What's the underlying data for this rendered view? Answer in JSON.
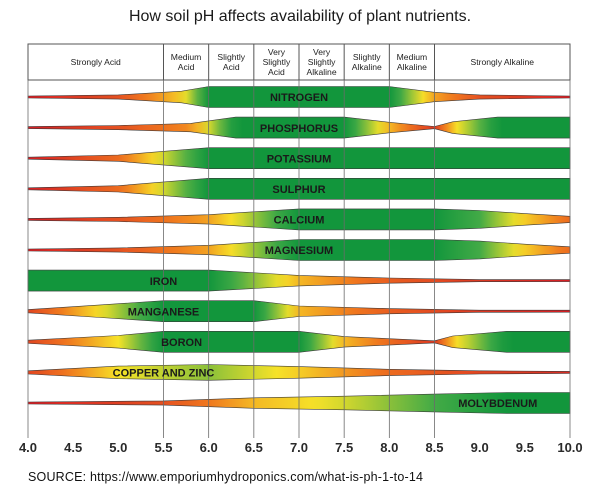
{
  "chart_data": {
    "type": "band",
    "title": "How soil pH affects availability of plant nutrients.",
    "xlabel": "",
    "ylabel": "",
    "xlim": [
      4.0,
      10.0
    ],
    "x_ticks": [
      "4.0",
      "4.5",
      "5.0",
      "5.5",
      "6.0",
      "6.5",
      "7.0",
      "7.5",
      "8.0",
      "8.5",
      "9.0",
      "9.5",
      "10.0"
    ],
    "zones": [
      {
        "label": "Strongly Acid",
        "from": 4.0,
        "to": 5.5
      },
      {
        "label": "Medium Acid",
        "from": 5.5,
        "to": 6.0
      },
      {
        "label": "Slightly Acid",
        "from": 6.0,
        "to": 6.5
      },
      {
        "label": "Very Slightly Acid",
        "from": 6.5,
        "to": 7.0
      },
      {
        "label": "Very Slightly Alkaline",
        "from": 7.0,
        "to": 7.5
      },
      {
        "label": "Slightly Alkaline",
        "from": 7.5,
        "to": 8.0
      },
      {
        "label": "Medium Alkaline",
        "from": 8.0,
        "to": 8.5
      },
      {
        "label": "Strongly Alkaline",
        "from": 8.5,
        "to": 10.0
      }
    ],
    "availability_scale": "0 = unavailable (red), 1 = fully available (green)",
    "series": [
      {
        "name": "NITROGEN",
        "label_ph": 7.0,
        "points": [
          [
            4.0,
            0.0
          ],
          [
            5.0,
            0.2
          ],
          [
            5.7,
            0.55
          ],
          [
            6.0,
            1.0
          ],
          [
            8.0,
            1.0
          ],
          [
            8.5,
            0.45
          ],
          [
            9.0,
            0.2
          ],
          [
            10.0,
            0.0
          ]
        ]
      },
      {
        "name": "PHOSPHORUS",
        "label_ph": 7.0,
        "points": [
          [
            4.0,
            0.0
          ],
          [
            5.0,
            0.2
          ],
          [
            5.8,
            0.4
          ],
          [
            6.3,
            1.0
          ],
          [
            7.5,
            1.0
          ],
          [
            8.0,
            0.5
          ],
          [
            8.5,
            0.1
          ],
          [
            8.7,
            0.55
          ],
          [
            9.2,
            1.0
          ],
          [
            10.0,
            1.0
          ]
        ]
      },
      {
        "name": "POTASSIUM",
        "label_ph": 7.0,
        "points": [
          [
            4.0,
            0.0
          ],
          [
            5.0,
            0.3
          ],
          [
            6.0,
            1.0
          ],
          [
            10.0,
            1.0
          ]
        ]
      },
      {
        "name": "SULPHUR",
        "label_ph": 7.0,
        "points": [
          [
            4.0,
            0.0
          ],
          [
            5.0,
            0.3
          ],
          [
            6.0,
            1.0
          ],
          [
            10.0,
            1.0
          ]
        ]
      },
      {
        "name": "CALCIUM",
        "label_ph": 7.0,
        "points": [
          [
            4.0,
            0.0
          ],
          [
            5.0,
            0.2
          ],
          [
            6.0,
            0.45
          ],
          [
            7.0,
            1.0
          ],
          [
            8.5,
            1.0
          ],
          [
            9.0,
            0.85
          ],
          [
            9.5,
            0.55
          ],
          [
            10.0,
            0.3
          ]
        ]
      },
      {
        "name": "MAGNESIUM",
        "label_ph": 7.0,
        "points": [
          [
            4.0,
            0.0
          ],
          [
            5.0,
            0.2
          ],
          [
            6.0,
            0.45
          ],
          [
            7.0,
            1.0
          ],
          [
            8.5,
            1.0
          ],
          [
            9.0,
            0.85
          ],
          [
            9.5,
            0.55
          ],
          [
            10.0,
            0.3
          ]
        ]
      },
      {
        "name": "IRON",
        "label_ph": 5.5,
        "points": [
          [
            4.0,
            1.0
          ],
          [
            6.0,
            1.0
          ],
          [
            7.0,
            0.5
          ],
          [
            8.0,
            0.25
          ],
          [
            9.0,
            0.1
          ],
          [
            10.0,
            0.0
          ]
        ]
      },
      {
        "name": "MANGANESE",
        "label_ph": 5.5,
        "points": [
          [
            4.0,
            0.15
          ],
          [
            4.8,
            0.6
          ],
          [
            5.5,
            1.0
          ],
          [
            6.5,
            1.0
          ],
          [
            7.0,
            0.5
          ],
          [
            8.0,
            0.25
          ],
          [
            9.0,
            0.1
          ],
          [
            10.0,
            0.0
          ]
        ]
      },
      {
        "name": "BORON",
        "label_ph": 5.7,
        "points": [
          [
            4.0,
            0.15
          ],
          [
            5.0,
            0.6
          ],
          [
            5.5,
            1.0
          ],
          [
            7.0,
            1.0
          ],
          [
            7.5,
            0.5
          ],
          [
            8.5,
            0.1
          ],
          [
            8.7,
            0.55
          ],
          [
            9.3,
            1.0
          ],
          [
            10.0,
            1.0
          ]
        ]
      },
      {
        "name": "COPPER AND ZINC",
        "label_ph": 5.5,
        "points": [
          [
            4.0,
            0.15
          ],
          [
            5.0,
            0.6
          ],
          [
            6.0,
            0.75
          ],
          [
            7.0,
            0.55
          ],
          [
            8.0,
            0.3
          ],
          [
            9.0,
            0.15
          ],
          [
            10.0,
            0.05
          ]
        ]
      },
      {
        "name": "MOLYBDENUM",
        "label_ph": 9.2,
        "points": [
          [
            4.0,
            0.0
          ],
          [
            5.5,
            0.2
          ],
          [
            6.5,
            0.5
          ],
          [
            7.5,
            0.65
          ],
          [
            8.5,
            0.85
          ],
          [
            9.3,
            1.0
          ],
          [
            10.0,
            1.0
          ]
        ]
      }
    ]
  },
  "source_note": "SOURCE: https://www.emporiumhydroponics.com/what-is-ph-1-to-14"
}
